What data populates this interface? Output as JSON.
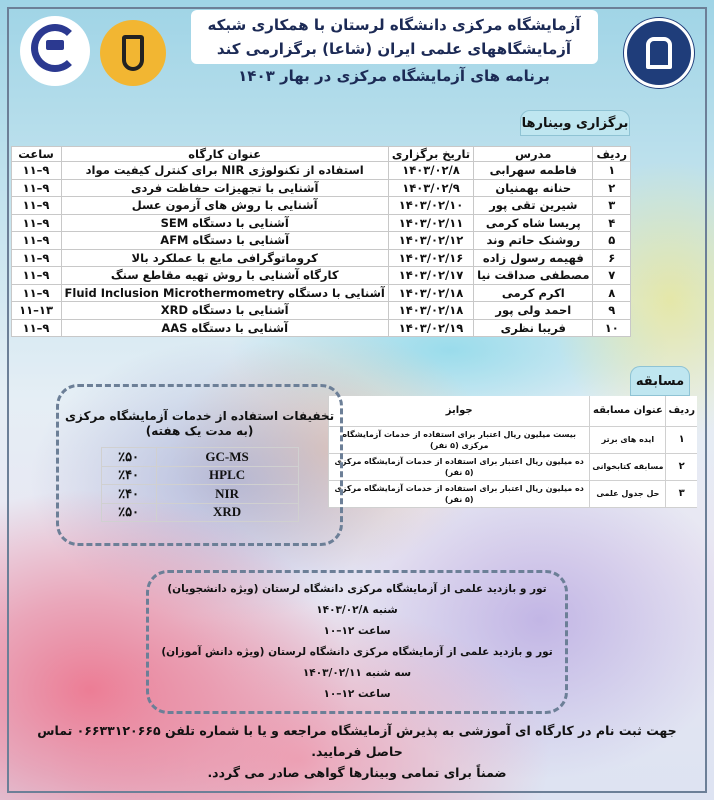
{
  "header": {
    "line1": "آزمایشگاه مرکزی دانشگاه لرستان با همکاری شبکه",
    "line2": "آزمایشگاههای علمی ایران (شاعا) برگزارمی کند",
    "subtitle": "برنامه های آزمایشگاه مرکزی در بهار ۱۴۰۳"
  },
  "logos": {
    "left_text": "آزمایشگاه مرکزی دانشگاه لرستان",
    "middle": "شاعا",
    "right_text": "دانشگاه لرستان"
  },
  "webinars": {
    "tab": "برگزاری وبینارها",
    "columns": [
      "ردیف",
      "مدرس",
      "تاریخ برگزاری",
      "عنوان کارگاه",
      "ساعت"
    ],
    "rows": [
      [
        "۱",
        "فاطمه سهرابی",
        "۱۴۰۳/۰۲/۸",
        "استفاده از تکنولوژی NIR برای کنترل کیفیت مواد",
        "۹–۱۱"
      ],
      [
        "۲",
        "حنانه بهمنیان",
        "۱۴۰۳/۰۲/۹",
        "آشنایی با تجهیزات حفاظت فردی",
        "۹–۱۱"
      ],
      [
        "۳",
        "شیرین تقی پور",
        "۱۴۰۳/۰۲/۱۰",
        "آشنایی با روش های آزمون عسل",
        "۹–۱۱"
      ],
      [
        "۴",
        "پریسا شاه کرمی",
        "۱۴۰۳/۰۲/۱۱",
        "آشنایی با دستگاه SEM",
        "۹–۱۱"
      ],
      [
        "۵",
        "روشنک حاتم وند",
        "۱۴۰۳/۰۲/۱۲",
        "آشنایی با دستگاه AFM",
        "۹–۱۱"
      ],
      [
        "۶",
        "فهیمه رسول زاده",
        "۱۴۰۳/۰۲/۱۶",
        "کروماتوگرافی مایع با عملکرد بالا",
        "۹–۱۱"
      ],
      [
        "۷",
        "مصطفی صداقت نیا",
        "۱۴۰۳/۰۲/۱۷",
        "کارگاه آشنایی با روش تهیه مقاطع سنگ",
        "۹–۱۱"
      ],
      [
        "۸",
        "اکرم کرمی",
        "۱۴۰۳/۰۲/۱۸",
        "آشنایی با دستگاه Fluid Inclusion Microthermometry",
        "۹–۱۱"
      ],
      [
        "۹",
        "احمد ولی پور",
        "۱۴۰۳/۰۲/۱۸",
        "آشنایی با دستگاه XRD",
        "۱۳–۱۱"
      ],
      [
        "۱۰",
        "فریبا نظری",
        "۱۴۰۳/۰۲/۱۹",
        "آشنایی با دستگاه AAS",
        "۹–۱۱"
      ]
    ]
  },
  "competition": {
    "tab": "مسابقه",
    "columns": [
      "ردیف",
      "عنوان مسابقه",
      "جوایز"
    ],
    "rows": [
      [
        "۱",
        "ایده های برتر",
        "بیست میلیون ریال اعتبار برای استفاده از خدمات آزمایشگاه مرکزی (۵ نفر)"
      ],
      [
        "۲",
        "مسابقه کتابخوانی",
        "ده میلیون ریال اعتبار برای استفاده از خدمات آزمایشگاه مرکزی (۵ نفر)"
      ],
      [
        "۳",
        "حل جدول علمی",
        "ده میلیون ریال اعتبار برای استفاده از خدمات آزمایشگاه مرکزی (۵ نفر)"
      ]
    ]
  },
  "discounts": {
    "title": "تخفیفات استفاده از خدمات آزمایشگاه مرکزی",
    "subtitle": "(به مدت یک هفته)",
    "rows": [
      [
        "٪۵۰",
        "GC-MS"
      ],
      [
        "٪۴۰",
        "HPLC"
      ],
      [
        "٪۴۰",
        "NIR"
      ],
      [
        "٪۵۰",
        "XRD"
      ]
    ]
  },
  "tour": {
    "lines": [
      "تور و بازدید علمی از آزمایشگاه مرکزی دانشگاه لرستان (ویژه دانشجویان)",
      "شنبه ۱۴۰۳/۰۲/۸",
      "ساعت ۱۲–۱۰",
      "تور و بازدید علمی از آزمایشگاه مرکزی دانشگاه لرستان (ویژه دانش آموزان)",
      "سه شنبه ۱۴۰۳/۰۲/۱۱",
      "ساعت ۱۲–۱۰"
    ]
  },
  "footer": {
    "line1": "جهت ثبت نام در کارگاه ای آموزشی به پذیرش آزمایشگاه مراجعه و یا با شماره تلفن ۰۶۶۳۳۱۲۰۶۶۵ تماس حاصل فرمایید.",
    "line2": "ضمناً برای تمامی وبینارها گواهی صادر می گردد."
  }
}
